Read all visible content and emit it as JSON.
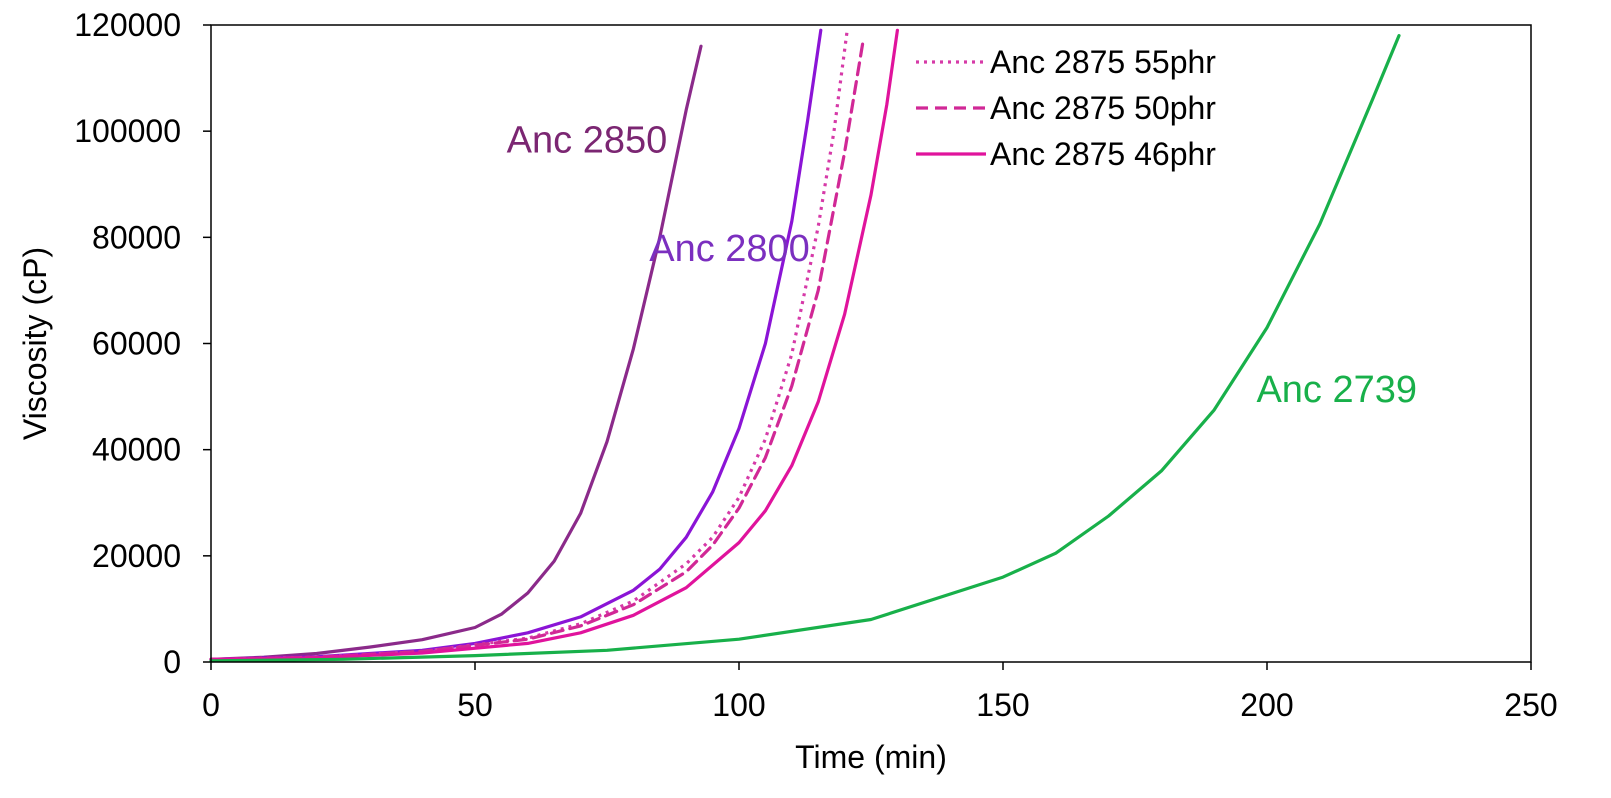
{
  "chart_data": {
    "type": "line",
    "title": "",
    "xlabel": "Time (min)",
    "ylabel": "Viscosity (cP)",
    "xlim": [
      0,
      250
    ],
    "ylim": [
      0,
      120000
    ],
    "x_ticks": [
      0,
      50,
      100,
      150,
      200,
      250
    ],
    "x_tick_labels": [
      "0",
      "50",
      "100",
      "150",
      "200",
      "250"
    ],
    "y_ticks": [
      0,
      20000,
      40000,
      60000,
      80000,
      100000,
      120000
    ],
    "y_tick_labels": [
      "0",
      "20000",
      "40000",
      "60000",
      "80000",
      "100000",
      "120000"
    ],
    "grid": false,
    "legend_position": "top-center",
    "series": [
      {
        "name": "Anc 2850",
        "label_source": "annotation",
        "color": "#8B2A8A",
        "dash": "solid",
        "x": [
          0,
          10,
          20,
          30,
          40,
          50,
          55,
          60,
          65,
          70,
          75,
          80,
          85,
          90,
          92.8
        ],
        "y": [
          500,
          900,
          1600,
          2800,
          4200,
          6500,
          9000,
          13000,
          19000,
          28000,
          41500,
          59000,
          80000,
          104000,
          116000
        ]
      },
      {
        "name": "Anc 2800",
        "label_source": "annotation",
        "color": "#8B14D6",
        "dash": "solid",
        "x": [
          0,
          20,
          40,
          50,
          60,
          70,
          80,
          85,
          90,
          95,
          100,
          105,
          110,
          113,
          115.5
        ],
        "y": [
          500,
          1000,
          2200,
          3500,
          5500,
          8500,
          13500,
          17500,
          23500,
          32000,
          44000,
          60000,
          83000,
          102000,
          119000
        ]
      },
      {
        "name": "Anc 2875 55phr",
        "label_source": "legend",
        "color": "#D63AA8",
        "dash": "dotted",
        "x": [
          0,
          20,
          40,
          60,
          70,
          80,
          90,
          95,
          100,
          105,
          110,
          115,
          118,
          120.5
        ],
        "y": [
          500,
          900,
          2000,
          4500,
          7200,
          11500,
          18500,
          23500,
          31000,
          42000,
          58000,
          82000,
          100000,
          119000
        ]
      },
      {
        "name": "Anc 2875 50phr",
        "label_source": "legend",
        "color": "#D12896",
        "dash": "dashed",
        "x": [
          0,
          20,
          40,
          60,
          70,
          80,
          90,
          95,
          100,
          105,
          110,
          115,
          120,
          123.5
        ],
        "y": [
          500,
          900,
          2000,
          4300,
          6800,
          10800,
          17000,
          22000,
          29000,
          38500,
          52000,
          70000,
          96000,
          117000
        ]
      },
      {
        "name": "Anc 2875 46phr",
        "label_source": "legend",
        "color": "#E0139C",
        "dash": "solid",
        "x": [
          0,
          20,
          40,
          60,
          70,
          80,
          90,
          100,
          105,
          110,
          115,
          120,
          125,
          128,
          130
        ],
        "y": [
          500,
          800,
          1700,
          3500,
          5500,
          8800,
          14000,
          22500,
          28500,
          37000,
          49000,
          65500,
          88000,
          105000,
          119000
        ]
      },
      {
        "name": "Anc 2739",
        "label_source": "annotation",
        "color": "#18B04A",
        "dash": "solid",
        "x": [
          0,
          25,
          50,
          75,
          100,
          125,
          150,
          160,
          170,
          180,
          190,
          200,
          210,
          220,
          225
        ],
        "y": [
          200,
          500,
          1200,
          2200,
          4300,
          8000,
          16000,
          20500,
          27500,
          36000,
          47500,
          63000,
          82500,
          106000,
          118000
        ]
      }
    ],
    "legend_entries": [
      "Anc 2875 55phr",
      "Anc 2875 50phr",
      "Anc 2875 46phr"
    ],
    "annotations": [
      {
        "text": "Anc 2850",
        "series": "Anc 2850",
        "color": "#7B2672",
        "anchor_x": 56,
        "anchor_y": 96000,
        "halign": "start"
      },
      {
        "text": "Anc 2800",
        "series": "Anc 2800",
        "color": "#7B2FBF",
        "anchor_x": 83,
        "anchor_y": 75500,
        "halign": "start"
      },
      {
        "text": "Anc 2739",
        "series": "Anc 2739",
        "color": "#18B04A",
        "anchor_x": 198,
        "anchor_y": 49000,
        "halign": "start"
      }
    ]
  }
}
